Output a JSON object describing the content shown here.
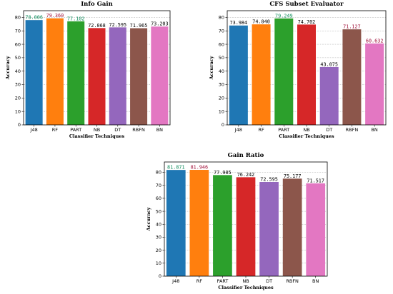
{
  "chart_data": [
    {
      "type": "bar",
      "title": "Info Gain",
      "xlabel": "Classifier Techniques",
      "ylabel": "Accuracy",
      "categories": [
        "J48",
        "RF",
        "PART",
        "NB",
        "DT",
        "RBFN",
        "BN"
      ],
      "values": [
        78.006,
        79.36,
        77.102,
        72.068,
        72.595,
        71.965,
        73.203
      ],
      "value_labels": [
        "78.006",
        "79.360",
        "77.102",
        "72.068",
        "72.595",
        "71.965",
        "73.203"
      ],
      "ylim": [
        0,
        85
      ],
      "yticks": [
        0,
        10,
        20,
        30,
        40,
        50,
        60,
        70,
        80
      ],
      "grid": true,
      "bar_colors": [
        "#1f77b4",
        "#ff7f0e",
        "#2ca02c",
        "#d62728",
        "#9467bd",
        "#8c564b",
        "#e377c2"
      ],
      "label_colors": [
        "#0b8a5a",
        "#a0103a",
        "#0b8a5a",
        "#000000",
        "#000000",
        "#000000",
        "#000000"
      ]
    },
    {
      "type": "bar",
      "title": "CFS Subset Evaluator",
      "xlabel": "Classifier Techniques",
      "ylabel": "Accuracy",
      "categories": [
        "J48",
        "RF",
        "PART",
        "NB",
        "DT",
        "RBFN",
        "BN"
      ],
      "values": [
        73.984,
        74.84,
        79.249,
        74.702,
        43.075,
        71.127,
        60.632
      ],
      "value_labels": [
        "73.984",
        "74.840",
        "79.249",
        "74.702",
        "43.075",
        "71.127",
        "60.632"
      ],
      "ylim": [
        0,
        85
      ],
      "yticks": [
        0,
        10,
        20,
        30,
        40,
        50,
        60,
        70,
        80
      ],
      "grid": true,
      "bar_colors": [
        "#1f77b4",
        "#ff7f0e",
        "#2ca02c",
        "#d62728",
        "#9467bd",
        "#8c564b",
        "#e377c2"
      ],
      "label_colors": [
        "#000000",
        "#000000",
        "#0b8a5a",
        "#000000",
        "#000000",
        "#a0103a",
        "#a0103a"
      ]
    },
    {
      "type": "bar",
      "title": "Gain Ratio",
      "xlabel": "Classifier Techniques",
      "ylabel": "Accuracy",
      "categories": [
        "J48",
        "RF",
        "PART",
        "NB",
        "DT",
        "RBFN",
        "BN"
      ],
      "values": [
        81.871,
        81.946,
        77.905,
        76.242,
        72.595,
        75.177,
        71.517
      ],
      "value_labels": [
        "81.871",
        "81.946",
        "77.905",
        "76.242",
        "72.595",
        "75.177",
        "71.517"
      ],
      "ylim": [
        0,
        88
      ],
      "yticks": [
        0,
        10,
        20,
        30,
        40,
        50,
        60,
        70,
        80
      ],
      "grid": true,
      "bar_colors": [
        "#1f77b4",
        "#ff7f0e",
        "#2ca02c",
        "#d62728",
        "#9467bd",
        "#8c564b",
        "#e377c2"
      ],
      "label_colors": [
        "#0b8a5a",
        "#a0103a",
        "#000000",
        "#000000",
        "#000000",
        "#000000",
        "#000000"
      ]
    }
  ]
}
